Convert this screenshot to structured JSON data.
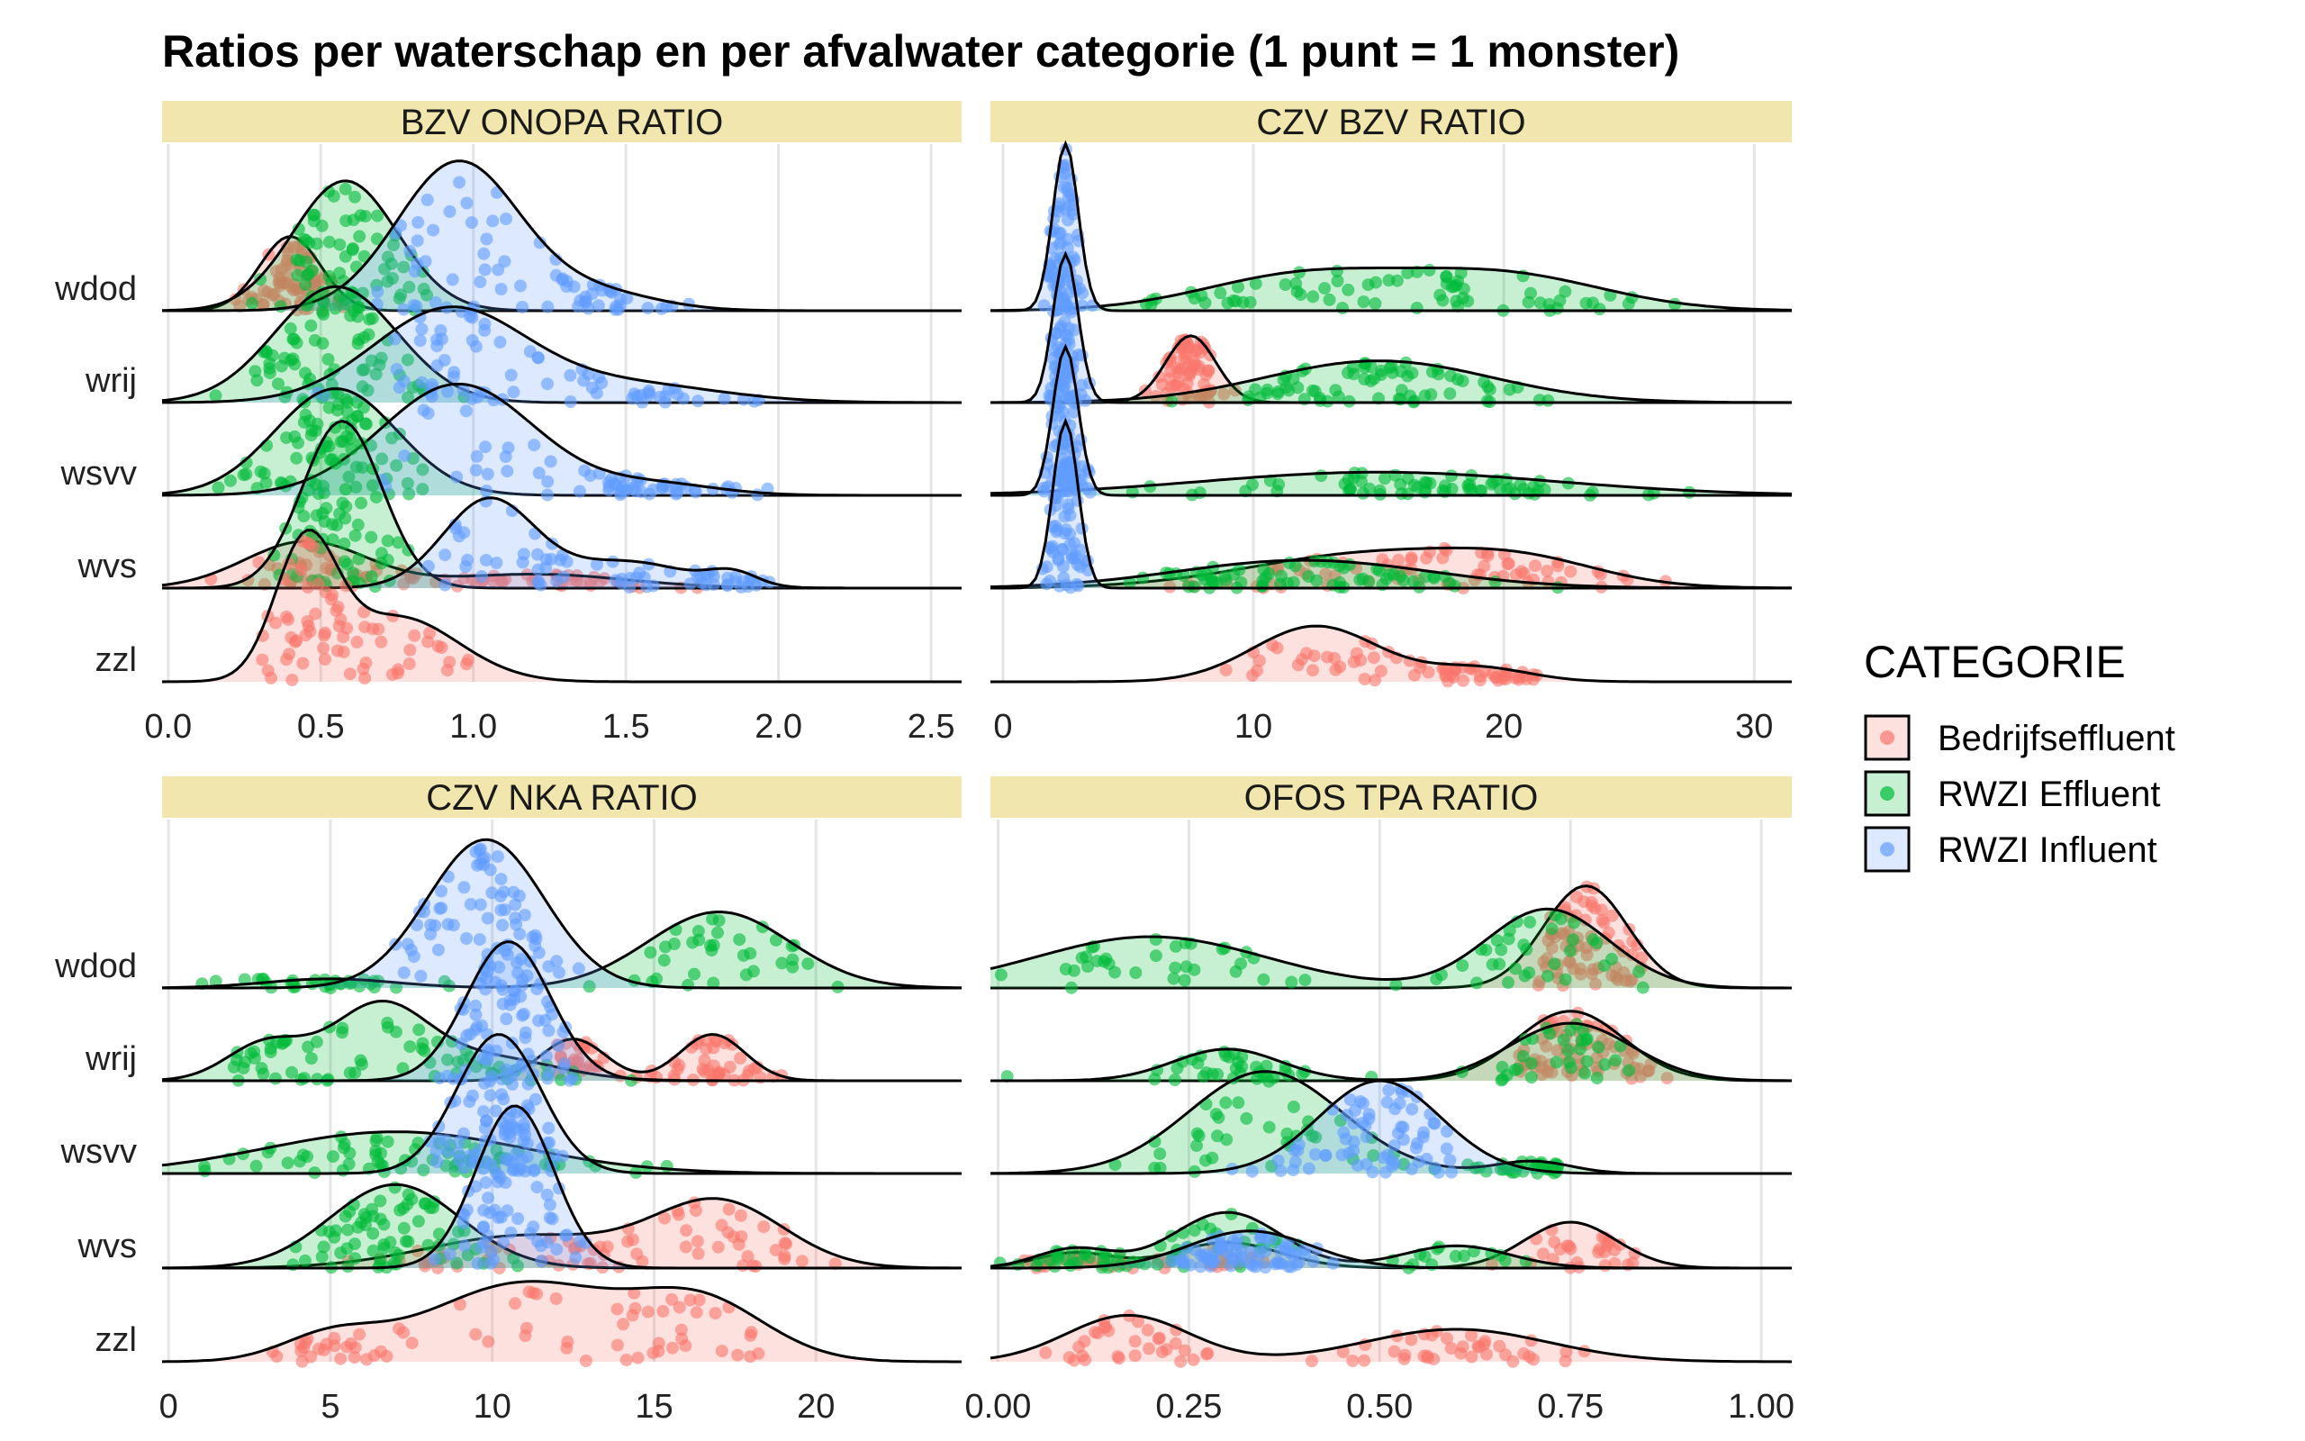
{
  "title": "Ratios per waterschap en per afvalwater categorie (1 punt = 1 monster)",
  "legend": {
    "title": "CATEGORIE",
    "items": [
      {
        "label": "Bedrijfseffluent",
        "color": "#F8766D"
      },
      {
        "label": "RWZI Effluent",
        "color": "#00BA38"
      },
      {
        "label": "RWZI Influent",
        "color": "#619CFF"
      }
    ]
  },
  "colors": {
    "strip": "#F0E6AE",
    "grid": "#E5E5E5",
    "outline": "#000000"
  },
  "chart_data": [
    {
      "type": "ridgeline",
      "facet": "BZV_ONOPA_RATIO",
      "categories": [
        "wdod",
        "wrij",
        "wsvv",
        "wvs",
        "zzl"
      ],
      "xlim": [
        -0.02,
        2.6
      ],
      "xticks": [
        0.0,
        0.5,
        1.0,
        1.5,
        2.0,
        2.5
      ],
      "xtick_labels": [
        "0.0",
        "0.5",
        "1.0",
        "1.5",
        "2.0",
        "2.5"
      ],
      "series": [
        {
          "name": "Bedrijfseffluent",
          "rows": {
            "wdod": {
              "range": [
                0.2,
                0.6
              ],
              "peaks": [
                [
                  0.4,
                  1.0,
                  0.1
                ]
              ],
              "height": 0.8
            },
            "wvs": {
              "range": [
                0.0,
                2.2
              ],
              "peaks": [
                [
                  0.45,
                  1.0,
                  0.2
                ],
                [
                  1.2,
                  0.3,
                  0.3
                ]
              ],
              "height": 0.5
            },
            "zzl": {
              "range": [
                0.0,
                1.25
              ],
              "peaks": [
                [
                  0.45,
                  1.0,
                  0.1
                ],
                [
                  0.75,
                  0.5,
                  0.2
                ]
              ],
              "height": 1.4
            }
          }
        },
        {
          "name": "RWZI Effluent",
          "rows": {
            "wdod": {
              "range": [
                0.1,
                2.2
              ],
              "peaks": [
                [
                  0.58,
                  1.0,
                  0.17
                ]
              ],
              "height": 1.4
            },
            "wrij": {
              "range": [
                0.0,
                1.6
              ],
              "peaks": [
                [
                  0.55,
                  1.0,
                  0.2
                ]
              ],
              "height": 1.25
            },
            "wsvv": {
              "range": [
                0.0,
                1.7
              ],
              "peaks": [
                [
                  0.55,
                  1.0,
                  0.2
                ]
              ],
              "height": 1.15
            },
            "wvs": {
              "range": [
                0.1,
                1.3
              ],
              "peaks": [
                [
                  0.57,
                  1.0,
                  0.13
                ]
              ],
              "height": 1.8
            }
          }
        },
        {
          "name": "RWZI Influent",
          "rows": {
            "wdod": {
              "range": [
                0.3,
                2.1
              ],
              "peaks": [
                [
                  0.95,
                  1.0,
                  0.2
                ],
                [
                  1.4,
                  0.12,
                  0.2
                ]
              ],
              "height": 1.6
            },
            "wrij": {
              "range": [
                0.2,
                2.4
              ],
              "peaks": [
                [
                  0.92,
                  1.0,
                  0.25
                ],
                [
                  1.5,
                  0.2,
                  0.3
                ]
              ],
              "height": 1.0
            },
            "wsvv": {
              "range": [
                0.3,
                2.3
              ],
              "peaks": [
                [
                  0.95,
                  1.0,
                  0.25
                ],
                [
                  1.6,
                  0.1,
                  0.2
                ]
              ],
              "height": 1.2
            },
            "wvs": {
              "range": [
                0.4,
                2.0
              ],
              "peaks": [
                [
                  1.05,
                  1.0,
                  0.15
                ],
                [
                  1.5,
                  0.3,
                  0.2
                ],
                [
                  1.85,
                  0.15,
                  0.08
                ]
              ],
              "height": 0.95
            }
          }
        }
      ]
    },
    {
      "type": "ridgeline",
      "facet": "CZV_BZV_RATIO",
      "categories": [
        "wdod",
        "wrij",
        "wsvv",
        "wvs",
        "zzl"
      ],
      "xlim": [
        -0.5,
        31.5
      ],
      "xticks": [
        0,
        10,
        20,
        30
      ],
      "xtick_labels": [
        "0",
        "10",
        "20",
        "30"
      ],
      "series": [
        {
          "name": "Bedrijfseffluent",
          "rows": {
            "wrij": {
              "range": [
                5,
                28
              ],
              "peaks": [
                [
                  7.5,
                  1.0,
                  1.0
                ]
              ],
              "height": 0.72
            },
            "wvs": {
              "range": [
                2,
                28.5
              ],
              "peaks": [
                [
                  15,
                  1.0,
                  5.0
                ],
                [
                  21,
                  0.5,
                  3.0
                ]
              ],
              "height": 0.38
            },
            "zzl": {
              "range": [
                2,
                25
              ],
              "peaks": [
                [
                  12.5,
                  1.0,
                  2.5
                ],
                [
                  19,
                  0.25,
                  2.0
                ]
              ],
              "height": 0.6
            }
          }
        },
        {
          "name": "RWZI Effluent",
          "rows": {
            "wdod": {
              "range": [
                4,
                27.5
              ],
              "peaks": [
                [
                  12,
                  1.0,
                  4.0
                ],
                [
                  20,
                  1.0,
                  4.0
                ]
              ],
              "height": 0.38
            },
            "wrij": {
              "range": [
                5,
                27
              ],
              "peaks": [
                [
                  15,
                  1.0,
                  4.5
                ]
              ],
              "height": 0.45
            },
            "wsvv": {
              "range": [
                4,
                28
              ],
              "peaks": [
                [
                  15,
                  1.0,
                  7.0
                ]
              ],
              "height": 0.25
            },
            "wvs": {
              "range": [
                4,
                25
              ],
              "peaks": [
                [
                  12,
                  1.0,
                  5.0
                ]
              ],
              "height": 0.3
            }
          }
        },
        {
          "name": "RWZI Influent",
          "rows": {
            "wdod": {
              "range": [
                1.5,
                4.0
              ],
              "peaks": [
                [
                  2.5,
                  1.0,
                  0.5
                ]
              ],
              "height": 1.8
            },
            "wrij": {
              "range": [
                1.5,
                4.5
              ],
              "peaks": [
                [
                  2.5,
                  1.0,
                  0.5
                ]
              ],
              "height": 1.6
            },
            "wsvv": {
              "range": [
                1.5,
                5.5
              ],
              "peaks": [
                [
                  2.5,
                  1.0,
                  0.5
                ]
              ],
              "height": 1.6
            },
            "wvs": {
              "range": [
                1.5,
                3.5
              ],
              "peaks": [
                [
                  2.5,
                  1.0,
                  0.5
                ]
              ],
              "height": 1.8
            }
          }
        }
      ]
    },
    {
      "type": "ridgeline",
      "facet": "CZV_NKA_RATIO",
      "categories": [
        "wdod",
        "wrij",
        "wsvv",
        "wvs",
        "zzl"
      ],
      "xlim": [
        -0.2,
        24.5
      ],
      "xticks": [
        0,
        5,
        10,
        15,
        20
      ],
      "xtick_labels": [
        "0",
        "5",
        "10",
        "15",
        "20"
      ],
      "series": [
        {
          "name": "Bedrijfseffluent",
          "rows": {
            "wrij": {
              "range": [
                12,
                19
              ],
              "peaks": [
                [
                  12.5,
                  0.9,
                  1.0
                ],
                [
                  16.8,
                  1.0,
                  1.0
                ]
              ],
              "height": 0.5
            },
            "wvs": {
              "range": [
                4,
                21
              ],
              "peaks": [
                [
                  11,
                  0.5,
                  3.0
                ],
                [
                  17,
                  1.0,
                  2.0
                ]
              ],
              "height": 0.7
            },
            "zzl": {
              "range": [
                3,
                19
              ],
              "peaks": [
                [
                  5,
                  0.3,
                  1.5
                ],
                [
                  11,
                  1.0,
                  3.0
                ],
                [
                  16.5,
                  0.7,
                  2.0
                ]
              ],
              "height": 0.85
            }
          }
        },
        {
          "name": "RWZI Effluent",
          "rows": {
            "wdod": {
              "range": [
                1,
                21
              ],
              "peaks": [
                [
                  5,
                  0.12,
                  2.0
                ],
                [
                  17,
                  1.0,
                  2.2
                ]
              ],
              "height": 0.82
            },
            "wrij": {
              "range": [
                2,
                16
              ],
              "peaks": [
                [
                  3,
                  0.5,
                  1.2
                ],
                [
                  6.5,
                  1.0,
                  1.5
                ],
                [
                  10,
                  0.3,
                  2.0
                ]
              ],
              "height": 0.8
            },
            "wsvv": {
              "range": [
                1,
                21
              ],
              "peaks": [
                [
                  7,
                  1.0,
                  4.0
                ]
              ],
              "height": 0.45
            },
            "wvs": {
              "range": [
                3,
                19
              ],
              "peaks": [
                [
                  7,
                  1.0,
                  2.0
                ]
              ],
              "height": 0.9
            }
          }
        },
        {
          "name": "RWZI Influent",
          "rows": {
            "wdod": {
              "range": [
                7,
                13.5
              ],
              "peaks": [
                [
                  9.8,
                  1.0,
                  1.8
                ]
              ],
              "height": 1.6
            },
            "wrij": {
              "range": [
                6,
                17
              ],
              "peaks": [
                [
                  10.5,
                  1.0,
                  1.3
                ]
              ],
              "height": 1.5
            },
            "wsvv": {
              "range": [
                6,
                14
              ],
              "peaks": [
                [
                  10.2,
                  1.0,
                  1.3
                ]
              ],
              "height": 1.5
            },
            "wvs": {
              "range": [
                7,
                14
              ],
              "peaks": [
                [
                  10.7,
                  1.0,
                  1.2
                ]
              ],
              "height": 1.75
            }
          }
        }
      ]
    },
    {
      "type": "ridgeline",
      "facet": "OFOS_TPA_RATIO",
      "categories": [
        "wdod",
        "wrij",
        "wsvv",
        "wvs",
        "zzl"
      ],
      "xlim": [
        -0.01,
        1.04
      ],
      "xticks": [
        0.0,
        0.25,
        0.5,
        0.75,
        1.0
      ],
      "xtick_labels": [
        "0.00",
        "0.25",
        "0.50",
        "0.75",
        "1.00"
      ],
      "series": [
        {
          "name": "Bedrijfseffluent",
          "rows": {
            "wdod": {
              "range": [
                0.7,
                0.85
              ],
              "peaks": [
                [
                  0.77,
                  1.0,
                  0.055
                ]
              ],
              "height": 1.1
            },
            "wrij": {
              "range": [
                0.68,
                0.9
              ],
              "peaks": [
                [
                  0.75,
                  1.0,
                  0.07
                ]
              ],
              "height": 0.75
            },
            "wvs": {
              "range": [
                0.0,
                0.85
              ],
              "peaks": [
                [
                  0.1,
                  0.3,
                  0.05
                ],
                [
                  0.3,
                  0.5,
                  0.07
                ],
                [
                  0.75,
                  0.9,
                  0.06
                ]
              ],
              "height": 0.55
            },
            "zzl": {
              "range": [
                0.0,
                0.83
              ],
              "peaks": [
                [
                  0.17,
                  1.0,
                  0.08
                ],
                [
                  0.6,
                  0.7,
                  0.12
                ]
              ],
              "height": 0.5
            }
          }
        },
        {
          "name": "RWZI Effluent",
          "rows": {
            "wdod": {
              "range": [
                0.0,
                0.85
              ],
              "peaks": [
                [
                  0.2,
                  0.65,
                  0.15
                ],
                [
                  0.72,
                  1.0,
                  0.08
                ]
              ],
              "height": 0.85
            },
            "wrij": {
              "range": [
                0.0,
                0.85
              ],
              "peaks": [
                [
                  0.3,
                  0.55,
                  0.07
                ],
                [
                  0.75,
                  1.0,
                  0.08
                ]
              ],
              "height": 0.62
            },
            "wsvv": {
              "range": [
                0.15,
                0.74
              ],
              "peaks": [
                [
                  0.35,
                  1.0,
                  0.1
                ],
                [
                  0.7,
                  0.12,
                  0.05
                ]
              ],
              "height": 1.1
            },
            "wvs": {
              "range": [
                0.0,
                0.7
              ],
              "peaks": [
                [
                  0.1,
                  0.35,
                  0.05
                ],
                [
                  0.3,
                  1.0,
                  0.07
                ],
                [
                  0.6,
                  0.4,
                  0.07
                ]
              ],
              "height": 0.6
            }
          }
        },
        {
          "name": "RWZI Influent",
          "rows": {
            "wsvv": {
              "range": [
                0.3,
                0.6
              ],
              "peaks": [
                [
                  0.5,
                  1.0,
                  0.08
                ]
              ],
              "height": 1.0
            },
            "wvs": {
              "range": [
                0.2,
                0.5
              ],
              "peaks": [
                [
                  0.33,
                  1.0,
                  0.08
                ]
              ],
              "height": 0.4
            }
          }
        }
      ]
    }
  ]
}
